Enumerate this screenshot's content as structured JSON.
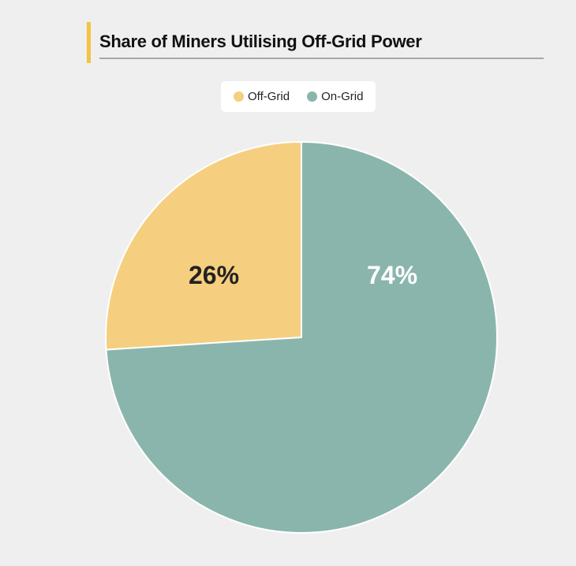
{
  "title": "Share of Miners Utilising Off-Grid Power",
  "legend": [
    {
      "label": "Off-Grid",
      "color": "#f5cf7f"
    },
    {
      "label": "On-Grid",
      "color": "#8ab5ad"
    }
  ],
  "chart_data": {
    "type": "pie",
    "title": "Share of Miners Utilising Off-Grid Power",
    "categories": [
      "Off-Grid",
      "On-Grid"
    ],
    "values": [
      26,
      74
    ],
    "labels": [
      "26%",
      "74%"
    ],
    "colors": [
      "#f5cf7f",
      "#8ab5ad"
    ],
    "label_colors": [
      "#222222",
      "#ffffff"
    ],
    "legend_position": "top"
  }
}
